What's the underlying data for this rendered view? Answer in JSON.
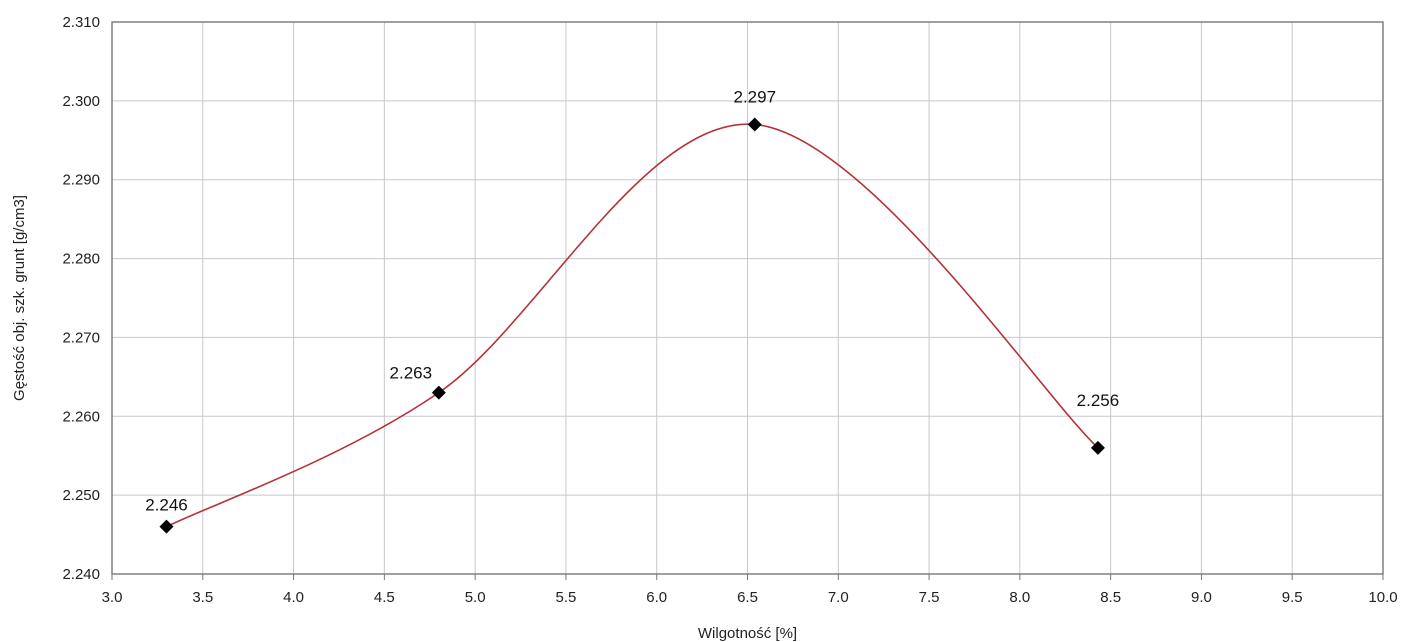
{
  "chart_data": {
    "type": "line",
    "title": "",
    "xlabel": "Wilgotność [%]",
    "ylabel": "Gęstość obj. szk. grunt [g/cm3]",
    "xlim": [
      3.0,
      10.0
    ],
    "ylim": [
      2.24,
      2.31
    ],
    "grid": true,
    "smooth": true,
    "x_ticks": [
      "3.0",
      "3.5",
      "4.0",
      "4.5",
      "5.0",
      "5.5",
      "6.0",
      "6.5",
      "7.0",
      "7.5",
      "8.0",
      "8.5",
      "9.0",
      "9.5",
      "10.0"
    ],
    "y_ticks": [
      "2.240",
      "2.250",
      "2.260",
      "2.270",
      "2.280",
      "2.290",
      "2.300",
      "2.310"
    ],
    "series": [
      {
        "x": [
          3.3,
          4.8,
          6.54,
          8.43
        ],
        "y": [
          2.246,
          2.263,
          2.297,
          2.256
        ],
        "labels": [
          "2.246",
          "2.263",
          "2.297",
          "2.256"
        ]
      }
    ],
    "colors": {
      "line": "#b5303a",
      "marker": "#000000",
      "grid": "#c8c8c8",
      "frame": "#777777"
    }
  }
}
